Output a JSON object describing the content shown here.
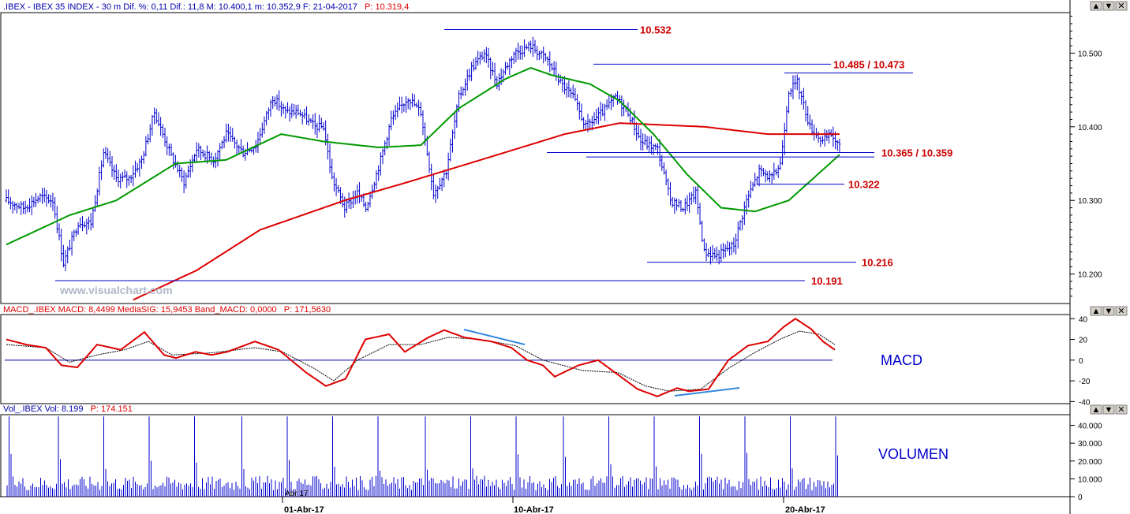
{
  "header": {
    "price_title": ".IBEX - IBEX 35 INDEX - 30 m Dif. %: 0,11 Dif.: 11,8 M: 10.400,1 m: 10.352,9 F: 21-04-2017",
    "price_p": "P: 10.319,4",
    "macd_title": "MACD_.IBEX MACD: 8,4499 MediaSIG: 15,9453 Band_MACD: 0,0000",
    "macd_p": "P: 171,5630",
    "vol_title": "Vol_.IBEX Vol: 8.199",
    "vol_p": "P: 174.151"
  },
  "watermark": "www.visualchart.com",
  "panel_labels": {
    "macd": "MACD",
    "volume": "VOLUMEN"
  },
  "window_buttons": [
    "▲",
    "▼",
    "✕"
  ],
  "x_axis": {
    "labels": [
      "01-Abr-17",
      "10-Abr-17",
      "20-Abr-17"
    ],
    "small_label": "Abr 17"
  },
  "colors": {
    "bars": "#0000cc",
    "sma_fast": "#009900",
    "sma_slow": "#dd0000",
    "macd": "#dd0000",
    "signal": "#000000",
    "level_text": "#cc0000",
    "level_line": "#0000cc",
    "divergence": "#3388dd",
    "volume": "#0000cc"
  },
  "chart_data": [
    {
      "type": "ohlc",
      "title": ".IBEX - IBEX 35 INDEX - 30 m",
      "y_ticks": [
        "10.500",
        "10.400",
        "10.300",
        "10.200"
      ],
      "y_range": [
        10160,
        10555
      ],
      "levels": [
        {
          "label": "10.532",
          "value": 10532
        },
        {
          "label": "10.485 / 10.473",
          "value": 10485,
          "second_value": 10473
        },
        {
          "label": "10.365 / 10.359",
          "value": 10365,
          "second_value": 10359
        },
        {
          "label": "10.322",
          "value": 10322
        },
        {
          "label": "10.216",
          "value": 10216
        },
        {
          "label": "10.191",
          "value": 10191
        }
      ],
      "close_anchors": [
        [
          0,
          10300
        ],
        [
          8,
          10290
        ],
        [
          16,
          10305
        ],
        [
          22,
          10300
        ],
        [
          27,
          10215
        ],
        [
          34,
          10270
        ],
        [
          40,
          10270
        ],
        [
          46,
          10365
        ],
        [
          52,
          10330
        ],
        [
          58,
          10330
        ],
        [
          64,
          10355
        ],
        [
          70,
          10420
        ],
        [
          78,
          10360
        ],
        [
          84,
          10325
        ],
        [
          90,
          10370
        ],
        [
          98,
          10355
        ],
        [
          104,
          10390
        ],
        [
          112,
          10365
        ],
        [
          118,
          10375
        ],
        [
          126,
          10440
        ],
        [
          132,
          10420
        ],
        [
          138,
          10420
        ],
        [
          146,
          10400
        ],
        [
          150,
          10400
        ],
        [
          154,
          10330
        ],
        [
          160,
          10290
        ],
        [
          166,
          10310
        ],
        [
          170,
          10290
        ],
        [
          176,
          10345
        ],
        [
          182,
          10410
        ],
        [
          190,
          10440
        ],
        [
          196,
          10420
        ],
        [
          202,
          10310
        ],
        [
          208,
          10340
        ],
        [
          214,
          10440
        ],
        [
          220,
          10480
        ],
        [
          226,
          10500
        ],
        [
          232,
          10460
        ],
        [
          240,
          10500
        ],
        [
          248,
          10510
        ],
        [
          256,
          10490
        ],
        [
          262,
          10460
        ],
        [
          268,
          10440
        ],
        [
          274,
          10400
        ],
        [
          282,
          10420
        ],
        [
          288,
          10440
        ],
        [
          294,
          10420
        ],
        [
          300,
          10380
        ],
        [
          308,
          10370
        ],
        [
          314,
          10300
        ],
        [
          320,
          10290
        ],
        [
          326,
          10310
        ],
        [
          330,
          10230
        ],
        [
          336,
          10225
        ],
        [
          344,
          10240
        ],
        [
          350,
          10300
        ],
        [
          356,
          10340
        ],
        [
          362,
          10330
        ],
        [
          366,
          10350
        ],
        [
          370,
          10450
        ],
        [
          374,
          10460
        ],
        [
          380,
          10400
        ],
        [
          386,
          10380
        ],
        [
          390,
          10390
        ],
        [
          394,
          10372
        ]
      ],
      "sma_fast_anchors": [
        [
          0,
          10240
        ],
        [
          30,
          10280
        ],
        [
          52,
          10300
        ],
        [
          80,
          10350
        ],
        [
          104,
          10355
        ],
        [
          130,
          10390
        ],
        [
          150,
          10380
        ],
        [
          176,
          10372
        ],
        [
          196,
          10375
        ],
        [
          214,
          10425
        ],
        [
          236,
          10465
        ],
        [
          248,
          10480
        ],
        [
          258,
          10470
        ],
        [
          276,
          10458
        ],
        [
          290,
          10435
        ],
        [
          306,
          10390
        ],
        [
          322,
          10335
        ],
        [
          338,
          10290
        ],
        [
          354,
          10285
        ],
        [
          370,
          10300
        ],
        [
          394,
          10362
        ]
      ],
      "sma_slow_anchors": [
        [
          60,
          10165
        ],
        [
          90,
          10205
        ],
        [
          120,
          10260
        ],
        [
          160,
          10300
        ],
        [
          190,
          10325
        ],
        [
          230,
          10360
        ],
        [
          264,
          10390
        ],
        [
          290,
          10405
        ],
        [
          330,
          10400
        ],
        [
          360,
          10390
        ],
        [
          394,
          10390
        ]
      ]
    },
    {
      "type": "line",
      "title": "MACD_.IBEX",
      "y_ticks": [
        40,
        20,
        0,
        -20,
        -40
      ],
      "y_range": [
        -42,
        44
      ],
      "macd_anchors": [
        [
          0,
          20
        ],
        [
          10,
          15
        ],
        [
          20,
          12
        ],
        [
          28,
          -5
        ],
        [
          36,
          -7
        ],
        [
          46,
          15
        ],
        [
          58,
          10
        ],
        [
          70,
          27
        ],
        [
          80,
          5
        ],
        [
          86,
          2
        ],
        [
          96,
          8
        ],
        [
          104,
          5
        ],
        [
          112,
          8
        ],
        [
          126,
          18
        ],
        [
          138,
          10
        ],
        [
          152,
          -12
        ],
        [
          162,
          -25
        ],
        [
          172,
          -18
        ],
        [
          182,
          20
        ],
        [
          194,
          25
        ],
        [
          202,
          8
        ],
        [
          214,
          22
        ],
        [
          222,
          29
        ],
        [
          232,
          22
        ],
        [
          246,
          18
        ],
        [
          256,
          12
        ],
        [
          264,
          0
        ],
        [
          272,
          -5
        ],
        [
          278,
          -16
        ],
        [
          290,
          -5
        ],
        [
          300,
          0
        ],
        [
          310,
          -14
        ],
        [
          320,
          -28
        ],
        [
          330,
          -35
        ],
        [
          340,
          -27
        ],
        [
          346,
          -30
        ],
        [
          356,
          -28
        ],
        [
          366,
          0
        ],
        [
          376,
          14
        ],
        [
          386,
          18
        ],
        [
          394,
          32
        ],
        [
          400,
          40
        ],
        [
          408,
          30
        ],
        [
          414,
          18
        ],
        [
          420,
          10
        ]
      ],
      "signal_anchors": [
        [
          0,
          15
        ],
        [
          20,
          12
        ],
        [
          32,
          -2
        ],
        [
          46,
          5
        ],
        [
          60,
          10
        ],
        [
          72,
          18
        ],
        [
          84,
          5
        ],
        [
          104,
          7
        ],
        [
          126,
          12
        ],
        [
          140,
          8
        ],
        [
          156,
          -8
        ],
        [
          166,
          -20
        ],
        [
          178,
          0
        ],
        [
          194,
          15
        ],
        [
          210,
          15
        ],
        [
          224,
          22
        ],
        [
          240,
          20
        ],
        [
          258,
          14
        ],
        [
          272,
          0
        ],
        [
          292,
          -10
        ],
        [
          310,
          -12
        ],
        [
          324,
          -25
        ],
        [
          336,
          -30
        ],
        [
          352,
          -28
        ],
        [
          366,
          -8
        ],
        [
          380,
          8
        ],
        [
          392,
          20
        ],
        [
          402,
          28
        ],
        [
          412,
          25
        ],
        [
          420,
          15
        ]
      ]
    },
    {
      "type": "bar",
      "title": "Vol_.IBEX",
      "y_ticks": [
        "40.000",
        "30.000",
        "20.000",
        "10.000",
        "0"
      ],
      "y_range": [
        0,
        46000
      ],
      "bar_count": 422,
      "spike_indices": [
        1,
        26,
        49,
        72,
        95,
        119,
        142,
        165,
        188,
        212,
        235,
        258,
        282,
        305,
        328,
        351,
        374,
        397,
        420
      ],
      "spike_value": 45000,
      "base_value": 9000
    }
  ]
}
